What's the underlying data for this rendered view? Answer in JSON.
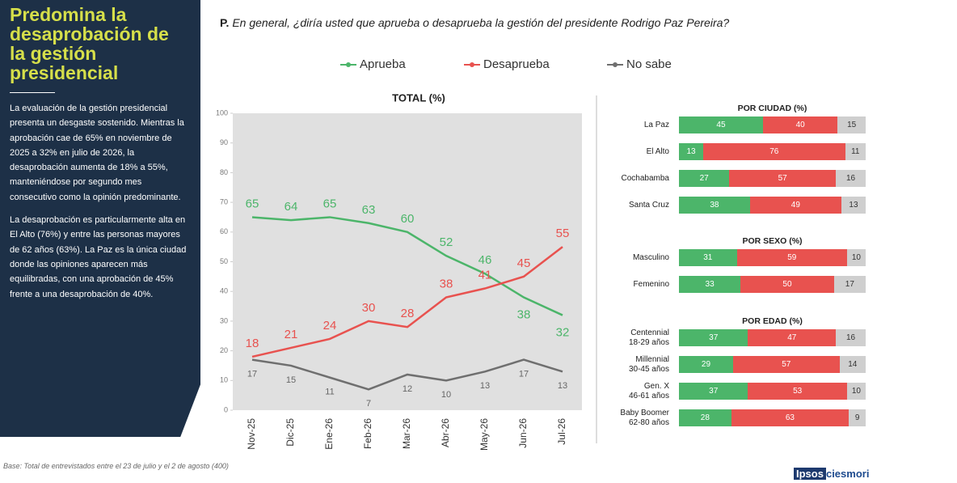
{
  "sidebar": {
    "title": "Predomina la desaprobación de la gestión presidencial",
    "paragraphs": [
      "La evaluación de la gestión presidencial presenta un desgaste sostenido. Mientras la aprobación cae de 65% en noviembre de 2025 a 32% en julio de 2026, la desaprobación aumenta de 18% a 55%, manteniéndose por segundo mes consecutivo como la opinión predominante.",
      "La desaprobación es particularmente alta en El Alto (76%) y entre las personas mayores de 62 años (63%). La Paz es la única ciudad donde las opiniones aparecen más equilibradas, con una aprobación de 45% frente a una desaprobación de 40%."
    ]
  },
  "question": {
    "prefix": "P.",
    "text": "En general, ¿diría usted que aprueba o desaprueba la gestión del presidente Rodrigo Paz Pereira?"
  },
  "base": "Base: Total de entrevistados entre el 23 de julio y el 2 de agosto (400)",
  "logo": {
    "left": "Ipsos",
    "right": "ciesmori"
  },
  "chart_data": [
    {
      "type": "line",
      "title": "TOTAL (%)",
      "categories": [
        "Nov-25",
        "Dic-25",
        "Ene-26",
        "Feb-26",
        "Mar-26",
        "Abr-26",
        "May-26",
        "Jun-26",
        "Jul-26"
      ],
      "series": [
        {
          "name": "Aprueba",
          "color": "#4cb56a",
          "values": [
            65,
            64,
            65,
            63,
            60,
            52,
            46,
            38,
            32
          ]
        },
        {
          "name": "Desaprueba",
          "color": "#e8524f",
          "values": [
            18,
            21,
            24,
            30,
            28,
            38,
            41,
            45,
            55
          ]
        },
        {
          "name": "No sabe",
          "color": "#6f6f6f",
          "values": [
            17,
            15,
            11,
            7,
            12,
            10,
            13,
            17,
            13
          ]
        }
      ],
      "ylim": [
        0,
        100
      ],
      "yticks": [
        0,
        10,
        20,
        30,
        40,
        50,
        60,
        70,
        80,
        90,
        100
      ],
      "background": "#e0e0e0"
    },
    {
      "type": "stacked_bar",
      "title": "POR CIUDAD (%)",
      "categories": [
        "La Paz",
        "El Alto",
        "Cochabamba",
        "Santa Cruz"
      ],
      "series": [
        {
          "color": "#4cb56a",
          "values": [
            45,
            13,
            27,
            38
          ]
        },
        {
          "color": "#e8524f",
          "values": [
            40,
            76,
            57,
            49
          ]
        },
        {
          "color": "#cfcfcf",
          "values": [
            15,
            11,
            16,
            13
          ]
        }
      ],
      "xlim": [
        0,
        100
      ]
    },
    {
      "type": "stacked_bar",
      "title": "POR SEXO (%)",
      "categories": [
        "Masculino",
        "Femenino"
      ],
      "series": [
        {
          "color": "#4cb56a",
          "values": [
            31,
            33
          ]
        },
        {
          "color": "#e8524f",
          "values": [
            59,
            50
          ]
        },
        {
          "color": "#cfcfcf",
          "values": [
            10,
            17
          ]
        }
      ],
      "xlim": [
        0,
        100
      ]
    },
    {
      "type": "stacked_bar",
      "title": "POR EDAD (%)",
      "categories": [
        "Centennial\n18-29 años",
        "Millennial\n30-45 años",
        "Gen. X\n46-61 años",
        "Baby Boomer\n62-80 años"
      ],
      "series": [
        {
          "color": "#4cb56a",
          "values": [
            37,
            29,
            37,
            28
          ]
        },
        {
          "color": "#e8524f",
          "values": [
            47,
            57,
            53,
            63
          ]
        },
        {
          "color": "#cfcfcf",
          "values": [
            16,
            14,
            10,
            9
          ]
        }
      ],
      "xlim": [
        0,
        100
      ]
    }
  ]
}
